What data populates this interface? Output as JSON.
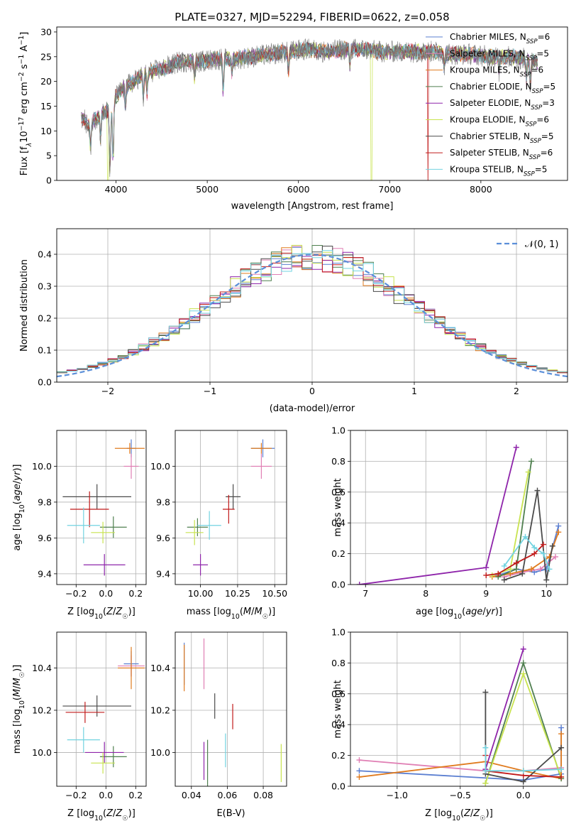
{
  "figure": {
    "title": "PLATE=0327, MJD=52294, FIBERID=0622, z=0.058"
  },
  "colors": {
    "Chabrier MILES": "#5b7fd1",
    "Salpeter MILES": "#e07fb4",
    "Kroupa MILES": "#e07b1f",
    "Chabrier ELODIE": "#4f7f4f",
    "Salpeter ELODIE": "#8e24aa",
    "Kroupa ELODIE": "#c8e34f",
    "Chabrier STELIB": "#4a4a4a",
    "Salpeter STELIB": "#c11b1b",
    "Kroupa STELIB": "#72d3e0",
    "gauss": "#5b8fd9"
  },
  "chart_data": [
    {
      "id": "spectrum",
      "type": "line",
      "title": "PLATE=0327, MJD=52294, FIBERID=0622, z=0.058",
      "xlabel": "wavelength [Angstrom, rest frame]",
      "ylabel": "Flux [f_λ 10^-17 erg cm^-2 s^-1 A^-1]",
      "xlim": [
        3350,
        8950
      ],
      "ylim": [
        0,
        31
      ],
      "xticks": [
        4000,
        5000,
        6000,
        7000,
        8000
      ],
      "yticks": [
        0,
        5,
        10,
        15,
        20,
        25,
        30
      ],
      "grid": false,
      "legend_position": "top-right",
      "continuum": [
        [
          3620,
          13
        ],
        [
          3700,
          11
        ],
        [
          3800,
          13
        ],
        [
          3900,
          14
        ],
        [
          3950,
          13.5
        ],
        [
          4000,
          17
        ],
        [
          4100,
          19
        ],
        [
          4200,
          20
        ],
        [
          4300,
          21.5
        ],
        [
          4500,
          22.5
        ],
        [
          4700,
          24
        ],
        [
          4900,
          24
        ],
        [
          5100,
          24.5
        ],
        [
          5300,
          24.5
        ],
        [
          5500,
          25
        ],
        [
          5700,
          25.5
        ],
        [
          5900,
          26
        ],
        [
          6100,
          26.5
        ],
        [
          6300,
          26
        ],
        [
          6500,
          26.5
        ],
        [
          6700,
          26.5
        ],
        [
          6900,
          26
        ],
        [
          7100,
          26
        ],
        [
          7300,
          26
        ],
        [
          7500,
          26
        ],
        [
          7700,
          25.5
        ],
        [
          7900,
          25.5
        ],
        [
          8100,
          25
        ],
        [
          8300,
          25
        ],
        [
          8500,
          24.5
        ],
        [
          8620,
          24
        ]
      ],
      "absorption": [
        [
          3720,
          5
        ],
        [
          3830,
          5
        ],
        [
          3934,
          12
        ],
        [
          3968,
          11
        ],
        [
          4102,
          4
        ],
        [
          4300,
          5
        ],
        [
          4340,
          4
        ],
        [
          4861,
          3
        ],
        [
          5175,
          7
        ],
        [
          5270,
          3
        ],
        [
          5890,
          4
        ],
        [
          6563,
          3
        ],
        [
          7600,
          3
        ],
        [
          8200,
          3
        ],
        [
          8500,
          4
        ],
        [
          8542,
          5
        ],
        [
          8662,
          5
        ]
      ],
      "spikes": [
        {
          "series": "Kroupa ELODIE",
          "x": 3912
        },
        {
          "series": "Kroupa ELODIE",
          "x": 6800
        },
        {
          "series": "Salpeter STELIB",
          "x": 7420
        }
      ],
      "series": [
        {
          "name": "Chabrier MILES",
          "nssp": "6"
        },
        {
          "name": "Salpeter MILES",
          "nssp": "5"
        },
        {
          "name": "Kroupa MILES",
          "nssp": "6"
        },
        {
          "name": "Chabrier ELODIE",
          "nssp": "5"
        },
        {
          "name": "Salpeter ELODIE",
          "nssp": "3"
        },
        {
          "name": "Kroupa ELODIE",
          "nssp": "6"
        },
        {
          "name": "Chabrier STELIB",
          "nssp": "5"
        },
        {
          "name": "Salpeter STELIB",
          "nssp": "6"
        },
        {
          "name": "Kroupa STELIB",
          "nssp": "5"
        }
      ],
      "legend_label_format": "{name}, N{sub}={nssp}",
      "legend_sub": "SSP"
    },
    {
      "id": "residuals",
      "type": "line",
      "xlabel": "(data-model)/error",
      "ylabel": "Normed distribution",
      "xlim": [
        -2.5,
        2.5
      ],
      "ylim": [
        0,
        0.48
      ],
      "xticks": [
        -2,
        -1,
        0,
        1,
        2
      ],
      "yticks": [
        0.0,
        0.1,
        0.2,
        0.3,
        0.4
      ],
      "grid": true,
      "legend_position": "top-right",
      "reference": {
        "name": "N(0, 1)",
        "label_main": "𝒩(0, 1)"
      },
      "bin_width": 0.1
    },
    {
      "id": "age_vs_Z",
      "type": "scatter",
      "xlabel": "Z [log10(Z/Z☉)]",
      "ylabel": "age  [log10(age/yr)]",
      "xlim": [
        -0.33,
        0.27
      ],
      "ylim": [
        9.34,
        10.2
      ],
      "xticks": [
        -0.2,
        0.0,
        0.2
      ],
      "yticks": [
        9.4,
        9.6,
        9.8,
        10.0
      ],
      "grid": true,
      "points": [
        {
          "series": "Chabrier MILES",
          "x": 0.17,
          "xe": 0.03,
          "y": 10.1,
          "ye": 0.05
        },
        {
          "series": "Salpeter MILES",
          "x": 0.17,
          "xe": 0.05,
          "y": 10.0,
          "ye": 0.07
        },
        {
          "series": "Kroupa MILES",
          "x": 0.16,
          "xe": 0.1,
          "y": 10.1,
          "ye": 0.03
        },
        {
          "series": "Chabrier ELODIE",
          "x": 0.05,
          "xe": 0.09,
          "y": 9.66,
          "ye": 0.06
        },
        {
          "series": "Salpeter ELODIE",
          "x": -0.01,
          "xe": 0.14,
          "y": 9.45,
          "ye": 0.06
        },
        {
          "series": "Kroupa ELODIE",
          "x": -0.02,
          "xe": 0.08,
          "y": 9.63,
          "ye": 0.06
        },
        {
          "series": "Chabrier STELIB",
          "x": -0.06,
          "xe": 0.23,
          "y": 9.83,
          "ye": 0.07
        },
        {
          "series": "Salpeter STELIB",
          "x": -0.11,
          "xe": 0.13,
          "y": 9.76,
          "ye": 0.1
        },
        {
          "series": "Kroupa STELIB",
          "x": -0.15,
          "xe": 0.11,
          "y": 9.67,
          "ye": 0.1
        }
      ]
    },
    {
      "id": "age_vs_mass",
      "type": "scatter",
      "xlabel": "mass [log10(M/M☉)]",
      "ylabel": "",
      "xlim": [
        9.83,
        10.58
      ],
      "ylim": [
        9.34,
        10.2
      ],
      "xticks": [
        10.0,
        10.25,
        10.5
      ],
      "yticks": [
        9.4,
        9.6,
        9.8,
        10.0
      ],
      "grid": true,
      "points": [
        {
          "series": "Chabrier MILES",
          "x": 10.42,
          "xe": 0.08,
          "y": 10.1,
          "ye": 0.05
        },
        {
          "series": "Salpeter MILES",
          "x": 10.41,
          "xe": 0.07,
          "y": 10.0,
          "ye": 0.07
        },
        {
          "series": "Kroupa MILES",
          "x": 10.41,
          "xe": 0.07,
          "y": 10.1,
          "ye": 0.03
        },
        {
          "series": "Chabrier ELODIE",
          "x": 9.98,
          "xe": 0.07,
          "y": 9.66,
          "ye": 0.05
        },
        {
          "series": "Salpeter ELODIE",
          "x": 10.0,
          "xe": 0.05,
          "y": 9.45,
          "ye": 0.06
        },
        {
          "series": "Kroupa ELODIE",
          "x": 9.96,
          "xe": 0.06,
          "y": 9.63,
          "ye": 0.07
        },
        {
          "series": "Chabrier STELIB",
          "x": 10.22,
          "xe": 0.05,
          "y": 9.83,
          "ye": 0.07
        },
        {
          "series": "Salpeter STELIB",
          "x": 10.19,
          "xe": 0.04,
          "y": 9.76,
          "ye": 0.08
        },
        {
          "series": "Kroupa STELIB",
          "x": 10.06,
          "xe": 0.08,
          "y": 9.67,
          "ye": 0.08
        }
      ]
    },
    {
      "id": "weight_vs_age",
      "type": "line",
      "xlabel": "age  [log10(age/yr)]",
      "ylabel": "mass weight",
      "xlim": [
        6.75,
        10.35
      ],
      "ylim": [
        0,
        1.0
      ],
      "xticks": [
        7,
        8,
        9,
        10
      ],
      "yticks": [
        0.0,
        0.2,
        0.4,
        0.6,
        0.8,
        1.0
      ],
      "grid": true,
      "series": [
        {
          "name": "Chabrier MILES",
          "x": [
            9.2,
            9.5,
            9.8,
            10.0,
            10.2
          ],
          "y": [
            0.06,
            0.1,
            0.08,
            0.1,
            0.38
          ]
        },
        {
          "name": "Salpeter MILES",
          "x": [
            9.3,
            9.6,
            9.9,
            10.15
          ],
          "y": [
            0.05,
            0.08,
            0.1,
            0.18
          ]
        },
        {
          "name": "Kroupa MILES",
          "x": [
            9.1,
            9.4,
            9.75,
            10.05,
            10.2
          ],
          "y": [
            0.05,
            0.07,
            0.1,
            0.18,
            0.34
          ]
        },
        {
          "name": "Chabrier ELODIE",
          "x": [
            9.2,
            9.5,
            9.75
          ],
          "y": [
            0.05,
            0.1,
            0.8
          ]
        },
        {
          "name": "Salpeter ELODIE",
          "x": [
            6.9,
            9.0,
            9.5
          ],
          "y": [
            0.0,
            0.11,
            0.89
          ]
        },
        {
          "name": "Kroupa ELODIE",
          "x": [
            9.1,
            9.4,
            9.7
          ],
          "y": [
            0.06,
            0.1,
            0.73
          ]
        },
        {
          "name": "Chabrier STELIB",
          "x": [
            9.3,
            9.6,
            9.85,
            10.0,
            10.1
          ],
          "y": [
            0.03,
            0.07,
            0.61,
            0.03,
            0.25
          ]
        },
        {
          "name": "Salpeter STELIB",
          "x": [
            9.0,
            9.2,
            9.5,
            9.8,
            9.95
          ],
          "y": [
            0.06,
            0.07,
            0.14,
            0.2,
            0.26
          ]
        },
        {
          "name": "Kroupa STELIB",
          "x": [
            9.3,
            9.65,
            9.8,
            9.95,
            10.05
          ],
          "y": [
            0.12,
            0.31,
            0.24,
            0.2,
            0.1
          ]
        }
      ]
    },
    {
      "id": "mass_vs_Z",
      "type": "scatter",
      "xlabel": "Z [log10(Z/Z☉)]",
      "ylabel": "mass [log10(M/M☉)]",
      "xlim": [
        -0.33,
        0.27
      ],
      "ylim": [
        9.84,
        10.57
      ],
      "xticks": [
        -0.2,
        0.0,
        0.2
      ],
      "yticks": [
        10.0,
        10.2,
        10.4
      ],
      "grid": true,
      "points": [
        {
          "series": "Chabrier MILES",
          "x": 0.17,
          "xe": 0.05,
          "y": 10.42,
          "ye": 0.06
        },
        {
          "series": "Salpeter MILES",
          "x": 0.17,
          "xe": 0.09,
          "y": 10.41,
          "ye": 0.05
        },
        {
          "series": "Kroupa MILES",
          "x": 0.17,
          "xe": 0.09,
          "y": 10.4,
          "ye": 0.1
        },
        {
          "series": "Chabrier ELODIE",
          "x": 0.05,
          "xe": 0.09,
          "y": 9.98,
          "ye": 0.05
        },
        {
          "series": "Salpeter ELODIE",
          "x": -0.01,
          "xe": 0.13,
          "y": 10.0,
          "ye": 0.05
        },
        {
          "series": "Kroupa ELODIE",
          "x": -0.02,
          "xe": 0.08,
          "y": 9.95,
          "ye": 0.05
        },
        {
          "series": "Chabrier STELIB",
          "x": -0.06,
          "xe": 0.23,
          "y": 10.22,
          "ye": 0.05
        },
        {
          "series": "Salpeter STELIB",
          "x": -0.14,
          "xe": 0.13,
          "y": 10.19,
          "ye": 0.05
        },
        {
          "series": "Kroupa STELIB",
          "x": -0.15,
          "xe": 0.11,
          "y": 10.06,
          "ye": 0.06
        }
      ]
    },
    {
      "id": "mass_vs_ebv",
      "type": "scatter",
      "xlabel": "E(B-V)",
      "ylabel": "",
      "xlim": [
        0.031,
        0.093
      ],
      "ylim": [
        9.84,
        10.57
      ],
      "xticks": [
        0.04,
        0.06,
        0.08
      ],
      "yticks": [
        10.0,
        10.2,
        10.4
      ],
      "grid": true,
      "points": [
        {
          "series": "Chabrier MILES",
          "x": 0.036,
          "y": 10.42,
          "ye": 0.1
        },
        {
          "series": "Salpeter MILES",
          "x": 0.047,
          "y": 10.42,
          "ye": 0.12
        },
        {
          "series": "Kroupa MILES",
          "x": 0.036,
          "y": 10.4,
          "ye": 0.11
        },
        {
          "series": "Chabrier ELODIE",
          "x": 0.049,
          "y": 9.95,
          "ye": 0.11
        },
        {
          "series": "Salpeter ELODIE",
          "x": 0.047,
          "y": 9.96,
          "ye": 0.09
        },
        {
          "series": "Kroupa ELODIE",
          "x": 0.09,
          "y": 9.95,
          "ye": 0.09
        },
        {
          "series": "Chabrier STELIB",
          "x": 0.053,
          "y": 10.22,
          "ye": 0.06
        },
        {
          "series": "Salpeter STELIB",
          "x": 0.063,
          "y": 10.17,
          "ye": 0.06
        },
        {
          "series": "Kroupa STELIB",
          "x": 0.059,
          "y": 10.01,
          "ye": 0.08
        }
      ]
    },
    {
      "id": "weight_vs_Z",
      "type": "line",
      "xlabel": "Z [log10(Z/Z☉)]",
      "ylabel": "mass weight",
      "xlim": [
        -1.37,
        0.35
      ],
      "ylim": [
        0,
        1.0
      ],
      "xticks": [
        -1.0,
        -0.5,
        0.0
      ],
      "yticks": [
        0.0,
        0.2,
        0.4,
        0.6,
        0.8,
        1.0
      ],
      "grid": true,
      "series": [
        {
          "name": "Chabrier MILES",
          "x": [
            -1.3,
            0.0,
            0.3,
            0.3
          ],
          "y": [
            0.1,
            0.04,
            0.08,
            0.38
          ]
        },
        {
          "name": "Salpeter MILES",
          "x": [
            -1.3,
            -0.3,
            0.0,
            0.3
          ],
          "y": [
            0.17,
            0.1,
            0.1,
            0.12
          ]
        },
        {
          "name": "Kroupa MILES",
          "x": [
            -1.3,
            -0.3,
            0.0,
            0.3,
            0.3
          ],
          "y": [
            0.06,
            0.16,
            0.1,
            0.05,
            0.34
          ]
        },
        {
          "name": "Chabrier ELODIE",
          "x": [
            -0.3,
            0.0,
            0.3
          ],
          "y": [
            0.02,
            0.8,
            0.05
          ]
        },
        {
          "name": "Salpeter ELODIE",
          "x": [
            -0.3,
            0.0
          ],
          "y": [
            0.11,
            0.89
          ]
        },
        {
          "name": "Kroupa ELODIE",
          "x": [
            -0.3,
            0.0,
            0.3
          ],
          "y": [
            0.02,
            0.73,
            0.06
          ]
        },
        {
          "name": "Chabrier STELIB",
          "x": [
            -0.3,
            -0.3,
            0.0,
            0.3
          ],
          "y": [
            0.61,
            0.08,
            0.03,
            0.25
          ]
        },
        {
          "name": "Salpeter STELIB",
          "x": [
            -0.3,
            -0.3,
            0.0,
            0.3
          ],
          "y": [
            0.2,
            0.1,
            0.07,
            0.06
          ]
        },
        {
          "name": "Kroupa STELIB",
          "x": [
            -0.3,
            -0.3,
            0.0,
            0.3
          ],
          "y": [
            0.25,
            0.1,
            0.1,
            0.11
          ]
        }
      ]
    }
  ]
}
